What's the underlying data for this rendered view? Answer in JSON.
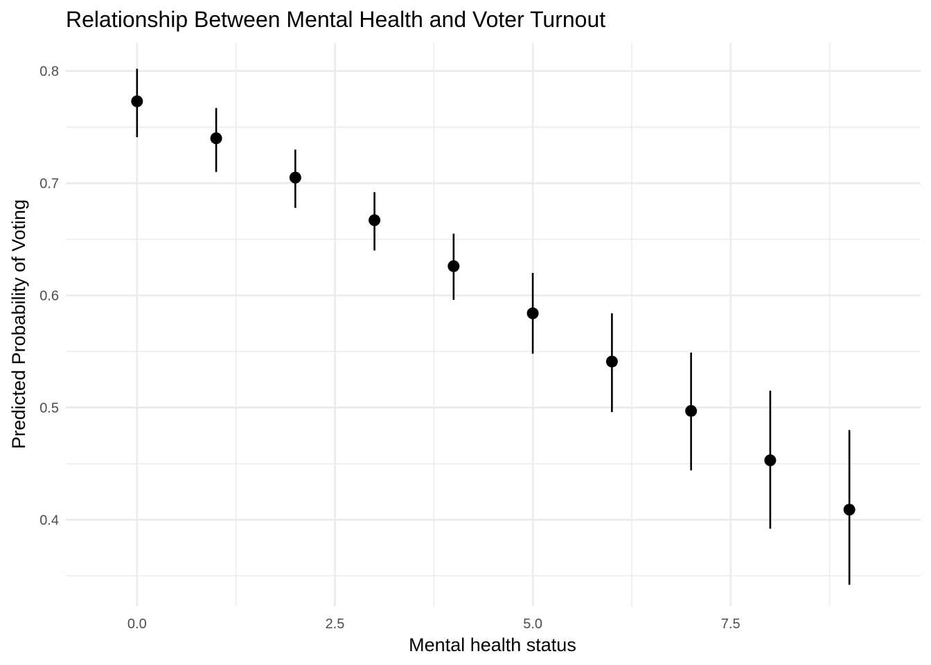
{
  "chart_data": {
    "type": "scatter",
    "title": "Relationship Between Mental Health and Voter Turnout",
    "xlabel": "Mental health status",
    "ylabel": "Predicted Probability of Voting",
    "xlim": [
      -0.9,
      9.9
    ],
    "ylim": [
      0.323,
      0.825
    ],
    "x_ticks": [
      0,
      2.5,
      5,
      7.5
    ],
    "x_tick_labels": [
      "0.0",
      "2.5",
      "5.0",
      "7.5"
    ],
    "x_minor_ticks": [
      1.25,
      3.75,
      6.25,
      8.75
    ],
    "y_ticks": [
      0.4,
      0.5,
      0.6,
      0.7,
      0.8
    ],
    "y_tick_labels": [
      "0.4",
      "0.5",
      "0.6",
      "0.7",
      "0.8"
    ],
    "y_minor_ticks": [
      0.35,
      0.45,
      0.55,
      0.65,
      0.75
    ],
    "grid": true,
    "point_color": "#000000",
    "points": [
      {
        "x": 0,
        "y": 0.773,
        "ymin": 0.741,
        "ymax": 0.802
      },
      {
        "x": 1,
        "y": 0.74,
        "ymin": 0.71,
        "ymax": 0.767
      },
      {
        "x": 2,
        "y": 0.705,
        "ymin": 0.678,
        "ymax": 0.73
      },
      {
        "x": 3,
        "y": 0.667,
        "ymin": 0.64,
        "ymax": 0.692
      },
      {
        "x": 4,
        "y": 0.626,
        "ymin": 0.596,
        "ymax": 0.655
      },
      {
        "x": 5,
        "y": 0.584,
        "ymin": 0.548,
        "ymax": 0.62
      },
      {
        "x": 6,
        "y": 0.541,
        "ymin": 0.496,
        "ymax": 0.584
      },
      {
        "x": 7,
        "y": 0.497,
        "ymin": 0.444,
        "ymax": 0.549
      },
      {
        "x": 8,
        "y": 0.453,
        "ymin": 0.392,
        "ymax": 0.515
      },
      {
        "x": 9,
        "y": 0.409,
        "ymin": 0.342,
        "ymax": 0.48
      }
    ]
  }
}
